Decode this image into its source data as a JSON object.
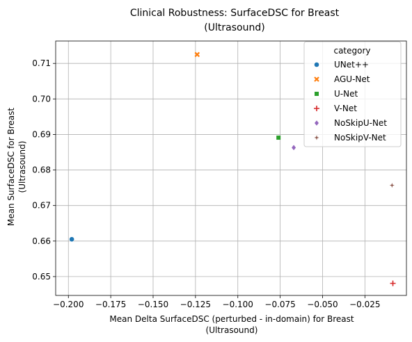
{
  "chart_data": {
    "type": "scatter",
    "title": [
      "Clinical Robustness: SurfaceDSC for Breast",
      "(Ultrasound)"
    ],
    "xlabel": [
      "Mean Delta SurfaceDSC (perturbed - in-domain) for Breast",
      "(Ultrasound)"
    ],
    "ylabel": [
      "Mean SurfaceDSC for Breast",
      "(Ultrasound)"
    ],
    "xlim": [
      -0.2075,
      -0.0005
    ],
    "ylim": [
      0.6447,
      0.7163
    ],
    "xticks": [
      -0.2,
      -0.175,
      -0.15,
      -0.125,
      -0.1,
      -0.075,
      -0.05,
      -0.025
    ],
    "xtick_labels": [
      "−0.200",
      "−0.175",
      "−0.150",
      "−0.125",
      "−0.100",
      "−0.075",
      "−0.050",
      "−0.025"
    ],
    "yticks": [
      0.65,
      0.66,
      0.67,
      0.68,
      0.69,
      0.7,
      0.71
    ],
    "ytick_labels": [
      "0.65",
      "0.66",
      "0.67",
      "0.68",
      "0.69",
      "0.70",
      "0.71"
    ],
    "grid": true,
    "legend_title": "category",
    "legend_position": "top-right",
    "series": [
      {
        "name": "UNet++",
        "x": -0.198,
        "y": 0.6605,
        "marker": "circle",
        "color": "#1f77b4"
      },
      {
        "name": "AGU-Net",
        "x": -0.124,
        "y": 0.7125,
        "marker": "x",
        "color": "#ff7f0e"
      },
      {
        "name": "U-Net",
        "x": -0.076,
        "y": 0.6891,
        "marker": "square",
        "color": "#2ca02c"
      },
      {
        "name": "V-Net",
        "x": -0.0085,
        "y": 0.6481,
        "marker": "plus",
        "color": "#d62728"
      },
      {
        "name": "NoSkipU-Net",
        "x": -0.067,
        "y": 0.6863,
        "marker": "diamond",
        "color": "#9467bd"
      },
      {
        "name": "NoSkipV-Net",
        "x": -0.009,
        "y": 0.6757,
        "marker": "star",
        "color": "#8c564b"
      }
    ]
  }
}
